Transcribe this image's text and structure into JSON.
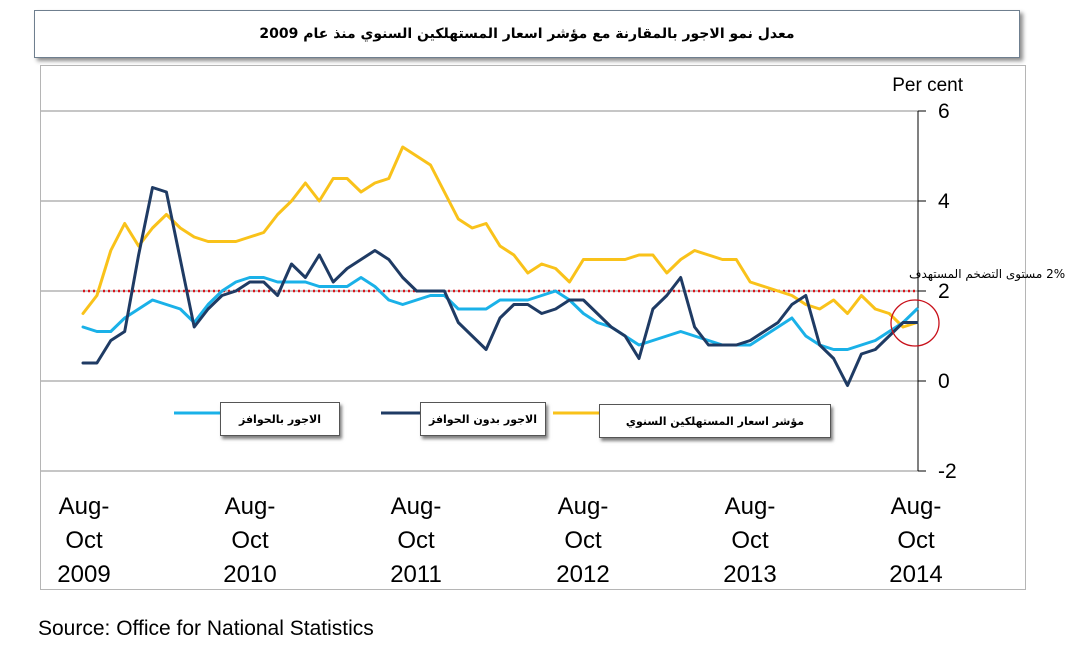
{
  "title": "معدل نمو الاجور  بالمقارنة مع مؤشر اسعار المستهلكين السنوي منذ عام 2009",
  "source": "Source: Office for National Statistics",
  "colors": {
    "wages_bonus": "#1ab1e8",
    "wages_no_bonus": "#1f3b64",
    "cpi": "#f9c21a",
    "target": "#d9141a",
    "circle": "#c8101a"
  },
  "chart_data": {
    "type": "line",
    "ylabel": "Per cent",
    "ylim": [
      -2,
      6
    ],
    "y_ticks": [
      "6",
      "4",
      "2",
      "0",
      "-2"
    ],
    "y_tick_values": [
      6,
      4,
      2,
      0,
      -2
    ],
    "x_tick_labels": [
      [
        "Aug-",
        "Oct",
        "2009"
      ],
      [
        "Aug-",
        "Oct",
        "2010"
      ],
      [
        "Aug-",
        "Oct",
        "2011"
      ],
      [
        "Aug-",
        "Oct",
        "2012"
      ],
      [
        "Aug-",
        "Oct",
        "2013"
      ],
      [
        "Aug-",
        "Oct",
        "2014"
      ]
    ],
    "x": [
      "2009-10",
      "2009-11",
      "2009-12",
      "2010-01",
      "2010-02",
      "2010-03",
      "2010-04",
      "2010-05",
      "2010-06",
      "2010-07",
      "2010-08",
      "2010-09",
      "2010-10",
      "2010-11",
      "2010-12",
      "2011-01",
      "2011-02",
      "2011-03",
      "2011-04",
      "2011-05",
      "2011-06",
      "2011-07",
      "2011-08",
      "2011-09",
      "2011-10",
      "2011-11",
      "2011-12",
      "2012-01",
      "2012-02",
      "2012-03",
      "2012-04",
      "2012-05",
      "2012-06",
      "2012-07",
      "2012-08",
      "2012-09",
      "2012-10",
      "2012-11",
      "2012-12",
      "2013-01",
      "2013-02",
      "2013-03",
      "2013-04",
      "2013-05",
      "2013-06",
      "2013-07",
      "2013-08",
      "2013-09",
      "2013-10",
      "2013-11",
      "2013-12",
      "2014-01",
      "2014-02",
      "2014-03",
      "2014-04",
      "2014-05",
      "2014-06",
      "2014-07",
      "2014-08",
      "2014-09",
      "2014-10"
    ],
    "series": [
      {
        "name": "الاجور بالحوافز",
        "color_key": "wages_bonus",
        "values": [
          1.2,
          1.1,
          1.1,
          1.4,
          1.6,
          1.8,
          1.7,
          1.6,
          1.3,
          1.7,
          2.0,
          2.2,
          2.3,
          2.3,
          2.2,
          2.2,
          2.2,
          2.1,
          2.1,
          2.1,
          2.3,
          2.1,
          1.8,
          1.7,
          1.8,
          1.9,
          1.9,
          1.6,
          1.6,
          1.6,
          1.8,
          1.8,
          1.8,
          1.9,
          2.0,
          1.8,
          1.5,
          1.3,
          1.2,
          1.0,
          0.8,
          0.9,
          1.0,
          1.1,
          1.0,
          0.9,
          0.8,
          0.8,
          0.8,
          1.0,
          1.2,
          1.4,
          1.0,
          0.8,
          0.7,
          0.7,
          0.8,
          0.9,
          1.1,
          1.3,
          1.6
        ]
      },
      {
        "name": "الاجور بدون الحوافز",
        "color_key": "wages_no_bonus",
        "values": [
          0.4,
          0.4,
          0.9,
          1.1,
          2.8,
          4.3,
          4.2,
          2.7,
          1.2,
          1.6,
          1.9,
          2.0,
          2.2,
          2.2,
          1.9,
          2.6,
          2.3,
          2.8,
          2.2,
          2.5,
          2.7,
          2.9,
          2.7,
          2.3,
          2.0,
          2.0,
          2.0,
          1.3,
          1.0,
          0.7,
          1.4,
          1.7,
          1.7,
          1.5,
          1.6,
          1.8,
          1.8,
          1.5,
          1.2,
          1.0,
          0.5,
          1.6,
          1.9,
          2.3,
          1.2,
          0.8,
          0.8,
          0.8,
          0.9,
          1.1,
          1.3,
          1.7,
          1.9,
          0.8,
          0.5,
          -0.1,
          0.6,
          0.7,
          1.0,
          1.3,
          1.3
        ]
      },
      {
        "name": "مؤشر اسعار المستهلكين السنوي",
        "color_key": "cpi",
        "values": [
          1.5,
          1.9,
          2.9,
          3.5,
          3.0,
          3.4,
          3.7,
          3.4,
          3.2,
          3.1,
          3.1,
          3.1,
          3.2,
          3.3,
          3.7,
          4.0,
          4.4,
          4.0,
          4.5,
          4.5,
          4.2,
          4.4,
          4.5,
          5.2,
          5.0,
          4.8,
          4.2,
          3.6,
          3.4,
          3.5,
          3.0,
          2.8,
          2.4,
          2.6,
          2.5,
          2.2,
          2.7,
          2.7,
          2.7,
          2.7,
          2.8,
          2.8,
          2.4,
          2.7,
          2.9,
          2.8,
          2.7,
          2.7,
          2.2,
          2.1,
          2.0,
          1.9,
          1.7,
          1.6,
          1.8,
          1.5,
          1.9,
          1.6,
          1.5,
          1.2,
          1.3
        ]
      }
    ],
    "reference_line": {
      "value": 2,
      "label": "2% مستوى التضخم المستهدف"
    },
    "legend_placement": "bottom-center, below lines",
    "grid": true
  }
}
